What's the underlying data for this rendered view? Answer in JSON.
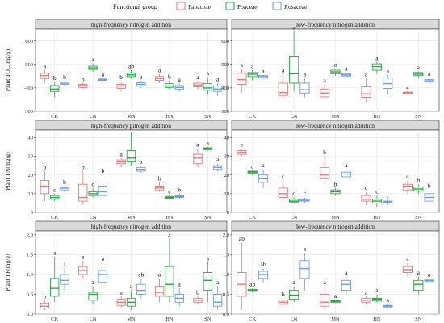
{
  "legend": {
    "title": "Functional group",
    "items": [
      {
        "name": "Fabaceae",
        "color": "#e8787a"
      },
      {
        "name": "Poaceae",
        "color": "#1fae3f"
      },
      {
        "name": "Rosaceae",
        "color": "#6b9be8"
      }
    ]
  },
  "chart_data": [
    {
      "type": "box",
      "row": 1,
      "col": 1,
      "title": "high-frequency nitrogen addition",
      "ylabel": "Plant TOC(mg/g)",
      "ylim": [
        300,
        650
      ],
      "yticks": [
        300,
        400,
        500,
        600
      ],
      "categories": [
        "CK",
        "LN",
        "MN",
        "HN",
        "SN"
      ],
      "series": [
        {
          "name": "Fabaceae",
          "boxes": [
            [
              420,
              440,
              452,
              462,
              475
            ],
            [
              395,
              402,
              410,
              415,
              420
            ],
            [
              385,
              398,
              408,
              415,
              428
            ],
            [
              420,
              432,
              440,
              448,
              458
            ],
            [
              395,
              405,
              412,
              420,
              428
            ]
          ],
          "letters": [
            "a",
            "b",
            "b",
            "a",
            "a"
          ]
        },
        {
          "name": "Poaceae",
          "boxes": [
            [
              360,
              385,
              395,
              410,
              425
            ],
            [
              468,
              478,
              485,
              492,
              505
            ],
            [
              438,
              448,
              455,
              462,
              475
            ],
            [
              395,
              402,
              408,
              418,
              430
            ],
            [
              370,
              390,
              400,
              418,
              445
            ]
          ],
          "letters": [
            "b",
            "a",
            "ab",
            "b",
            "a"
          ]
        },
        {
          "name": "Rosaceae",
          "boxes": [
            [
              410,
              415,
              420,
              425,
              428
            ],
            [
              428,
              432,
              435,
              438,
              440
            ],
            [
              400,
              408,
              415,
              422,
              430
            ],
            [
              385,
              395,
              402,
              410,
              418
            ],
            [
              365,
              385,
              395,
              408,
              420
            ]
          ],
          "letters": [
            "b",
            "a",
            "a",
            "a",
            "a"
          ]
        }
      ]
    },
    {
      "type": "box",
      "row": 1,
      "col": 2,
      "title": "low-frequency nitrogen addition",
      "ylabel": "",
      "ylim": [
        300,
        650
      ],
      "yticks": [
        300,
        400,
        500,
        600
      ],
      "categories": [
        "CK",
        "LN",
        "MN",
        "HN",
        "SN"
      ],
      "series": [
        {
          "name": "Fabaceae",
          "boxes": [
            [
              380,
              415,
              435,
              462,
              480
            ],
            [
              350,
              368,
              380,
              420,
              458
            ],
            [
              350,
              362,
              378,
              395,
              415
            ],
            [
              340,
              360,
              375,
              405,
              440
            ],
            [
              372,
              376,
              378,
              382,
              388
            ]
          ],
          "letters": [
            "a",
            "a",
            "a",
            "a",
            "a"
          ]
        },
        {
          "name": "Poaceae",
          "boxes": [
            [
              432,
              448,
              458,
              465,
              475
            ],
            [
              385,
              420,
              460,
              535,
              640
            ],
            [
              452,
              460,
              468,
              475,
              482
            ],
            [
              458,
              475,
              490,
              502,
              510
            ],
            [
              445,
              452,
              458,
              465,
              470
            ]
          ],
          "letters": [
            "a",
            "a",
            "a",
            "a",
            "a"
          ]
        },
        {
          "name": "Rosaceae",
          "boxes": [
            [
              438,
              442,
              448,
              452,
              455
            ],
            [
              360,
              378,
              392,
              420,
              440
            ],
            [
              445,
              450,
              455,
              460,
              465
            ],
            [
              370,
              398,
              418,
              442,
              455
            ],
            [
              418,
              425,
              430,
              435,
              442
            ]
          ],
          "letters": [
            "a",
            "a",
            "a",
            "a",
            "a"
          ]
        }
      ]
    },
    {
      "type": "box",
      "row": 2,
      "col": 1,
      "title": "high-frequency nitrogen addition",
      "ylabel": "Plant TN(mg/g)",
      "ylim": [
        0,
        44
      ],
      "yticks": [
        0,
        10,
        20,
        30,
        40
      ],
      "categories": [
        "CK",
        "LN",
        "MN",
        "HN",
        "SN"
      ],
      "series": [
        {
          "name": "Fabaceae",
          "boxes": [
            [
              6,
              10,
              14,
              17,
              22
            ],
            [
              4,
              6,
              8,
              15,
              22
            ],
            [
              24,
              26,
              27,
              28,
              29
            ],
            [
              11,
              12,
              13,
              14,
              16
            ],
            [
              24,
              26,
              29,
              31,
              34
            ]
          ],
          "letters": [
            "b",
            "b",
            "a",
            "b",
            "a"
          ]
        },
        {
          "name": "Poaceae",
          "boxes": [
            [
              6,
              7,
              8,
              9,
              10
            ],
            [
              8,
              9,
              10,
              11,
              13
            ],
            [
              25,
              27,
              29,
              33,
              43
            ],
            [
              7,
              7.5,
              8,
              8.5,
              9
            ],
            [
              33,
              33.5,
              34,
              34.5,
              35
            ]
          ],
          "letters": [
            "c",
            "c",
            "a",
            "c",
            "a"
          ]
        },
        {
          "name": "Rosaceae",
          "boxes": [
            [
              11,
              12,
              13,
              13.5,
              14
            ],
            [
              7,
              9,
              11,
              14,
              20
            ],
            [
              21,
              22,
              23,
              24,
              25
            ],
            [
              7,
              8,
              8.5,
              9,
              10
            ],
            [
              22,
              23,
              24,
              25,
              26
            ]
          ],
          "letters": [
            "b",
            "b",
            "a",
            "b",
            "a"
          ]
        }
      ]
    },
    {
      "type": "box",
      "row": 2,
      "col": 2,
      "title": "low-frequency nitrogen addition",
      "ylabel": "",
      "ylim": [
        0,
        44
      ],
      "yticks": [
        0,
        10,
        20,
        30,
        40
      ],
      "categories": [
        "CK",
        "LN",
        "MN",
        "HN",
        "SN"
      ],
      "series": [
        {
          "name": "Fabaceae",
          "boxes": [
            [
              30,
              31,
              32,
              33,
              34
            ],
            [
              6,
              8,
              10,
              13,
              17
            ],
            [
              15,
              18,
              20,
              24,
              30
            ],
            [
              4,
              6,
              7,
              9,
              11
            ],
            [
              10,
              12,
              14,
              15,
              17
            ]
          ],
          "letters": [
            "a",
            "c",
            "b",
            "c",
            "c"
          ]
        },
        {
          "name": "Poaceae",
          "boxes": [
            [
              20,
              21,
              21.5,
              22,
              22.5
            ],
            [
              5,
              5.5,
              6,
              7,
              8
            ],
            [
              9,
              10,
              11,
              12,
              13
            ],
            [
              3,
              5,
              6,
              7,
              9
            ],
            [
              10,
              11.5,
              12.5,
              13.5,
              15
            ]
          ],
          "letters": [
            "a",
            "c",
            "b",
            "c",
            "b"
          ]
        },
        {
          "name": "Rosaceae",
          "boxes": [
            [
              13,
              16,
              18,
              20,
              23
            ],
            [
              5,
              6,
              6.5,
              7,
              8
            ],
            [
              18,
              19,
              20.5,
              21.5,
              23
            ],
            [
              4,
              5,
              5.5,
              6,
              7
            ],
            [
              4,
              6,
              8,
              10,
              12
            ]
          ],
          "letters": [
            "a",
            "c",
            "a",
            "c",
            "b"
          ]
        }
      ]
    },
    {
      "type": "box",
      "row": 3,
      "col": 1,
      "title": "high-frequency nitrogen addition",
      "ylabel": "Plant TP(mg/g)",
      "ylim": [
        0,
        2.1
      ],
      "yticks": [
        0.0,
        0.5,
        1.0,
        1.5,
        2.0
      ],
      "categories": [
        "CK",
        "LN",
        "MN",
        "HN",
        "SN"
      ],
      "series": [
        {
          "name": "Fabaceae",
          "boxes": [
            [
              0.1,
              0.15,
              0.2,
              0.28,
              0.35
            ],
            [
              0.9,
              1.0,
              1.1,
              1.2,
              1.35
            ],
            [
              0.15,
              0.22,
              0.3,
              0.38,
              0.45
            ],
            [
              0.3,
              0.45,
              0.55,
              0.7,
              0.9
            ],
            [
              0.25,
              0.3,
              0.35,
              0.4,
              0.45
            ]
          ],
          "letters": [
            "b",
            "a",
            "a",
            "a",
            "b"
          ]
        },
        {
          "name": "Poaceae",
          "boxes": [
            [
              0.3,
              0.45,
              0.65,
              0.9,
              1.45
            ],
            [
              0.25,
              0.35,
              0.5,
              0.55,
              0.7
            ],
            [
              0.1,
              0.2,
              0.3,
              0.4,
              0.6
            ],
            [
              0.3,
              0.45,
              0.75,
              1.2,
              1.9
            ],
            [
              0.3,
              0.6,
              0.85,
              1.05,
              1.3
            ]
          ],
          "letters": [
            "a",
            "a",
            "a",
            "a",
            "a"
          ]
        },
        {
          "name": "Rosaceae",
          "boxes": [
            [
              0.6,
              0.75,
              0.85,
              1.0,
              1.15
            ],
            [
              0.6,
              0.8,
              1.0,
              1.1,
              1.3
            ],
            [
              0.4,
              0.5,
              0.6,
              0.75,
              0.9
            ],
            [
              0.2,
              0.3,
              0.4,
              0.5,
              0.65
            ],
            [
              0.1,
              0.2,
              0.3,
              0.5,
              0.7
            ]
          ],
          "letters": [
            "a",
            "a",
            "ab",
            "a",
            "a"
          ]
        }
      ]
    },
    {
      "type": "box",
      "row": 3,
      "col": 2,
      "title": "low-frequency nitrogen addition",
      "ylabel": "",
      "ylim": [
        0,
        2.1
      ],
      "yticks": [
        0.0,
        0.5,
        1.0,
        1.5,
        2.0
      ],
      "categories": [
        "CK",
        "LN",
        "MN",
        "HN",
        "SN"
      ],
      "series": [
        {
          "name": "Fabaceae",
          "boxes": [
            [
              0.1,
              0.45,
              0.75,
              1.05,
              1.8
            ],
            [
              0.2,
              0.25,
              0.3,
              0.35,
              0.4
            ],
            [
              0.1,
              0.2,
              0.3,
              0.5,
              0.7
            ],
            [
              0.25,
              0.3,
              0.35,
              0.4,
              0.45
            ],
            [
              0.95,
              1.05,
              1.12,
              1.2,
              1.3
            ]
          ],
          "letters": [
            "ab",
            "b",
            "a",
            "a",
            "a"
          ]
        },
        {
          "name": "Poaceae",
          "boxes": [
            [
              0.55,
              0.6,
              0.6,
              0.62,
              0.65
            ],
            [
              0.3,
              0.38,
              0.48,
              0.6,
              0.7
            ],
            [
              0.3,
              0.3,
              0.32,
              0.34,
              0.36
            ],
            [
              0.3,
              0.33,
              0.38,
              0.4,
              0.5
            ],
            [
              0.5,
              0.6,
              0.75,
              0.85,
              0.95
            ]
          ],
          "letters": [
            "ab",
            "a",
            "a",
            "a",
            "a"
          ]
        },
        {
          "name": "Rosaceae",
          "boxes": [
            [
              0.8,
              0.9,
              1.0,
              1.08,
              1.15
            ],
            [
              0.6,
              0.9,
              1.15,
              1.35,
              1.55
            ],
            [
              0.5,
              0.6,
              0.75,
              0.85,
              0.95
            ],
            [
              0.15,
              0.18,
              0.2,
              0.22,
              0.25
            ],
            [
              0.8,
              0.82,
              0.85,
              0.88,
              0.9
            ]
          ],
          "letters": [
            "ab",
            "a",
            "a",
            "a",
            "a"
          ]
        }
      ]
    }
  ]
}
